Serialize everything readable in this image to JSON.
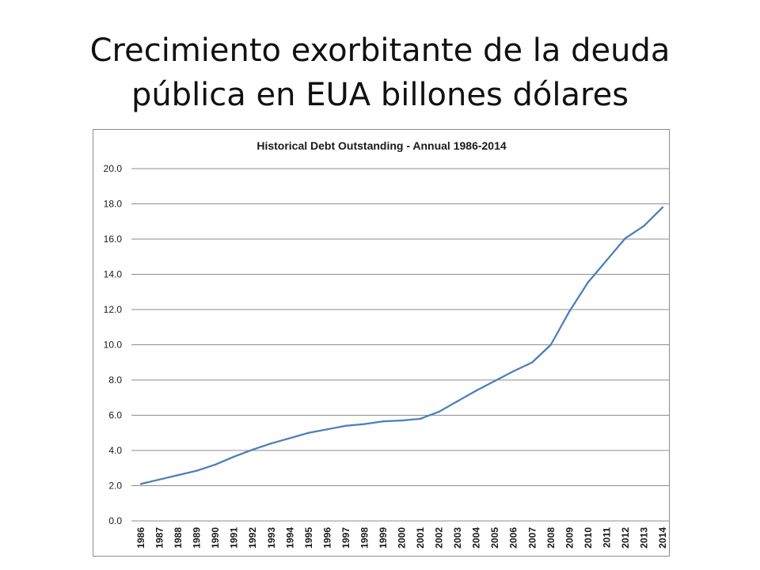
{
  "slide": {
    "title_line1": "Crecimiento exorbitante de la deuda",
    "title_line2": "pública en EUA billones dólares"
  },
  "colors": {
    "line": "#4a7ebb",
    "grid": "#8c8c8c",
    "frame": "#8c8c8c"
  },
  "chart_data": {
    "type": "line",
    "title": "Historical Debt Outstanding - Annual 1986-2014",
    "xlabel": "",
    "ylabel": "",
    "ylim": [
      0,
      20
    ],
    "yticks": [
      "0.0",
      "2.0",
      "4.0",
      "6.0",
      "8.0",
      "10.0",
      "12.0",
      "14.0",
      "16.0",
      "18.0",
      "20.0"
    ],
    "grid": true,
    "legend": "none",
    "categories": [
      "1986",
      "1987",
      "1988",
      "1989",
      "1990",
      "1991",
      "1992",
      "1993",
      "1994",
      "1995",
      "1996",
      "1997",
      "1998",
      "1999",
      "2000",
      "2001",
      "2002",
      "2003",
      "2004",
      "2005",
      "2006",
      "2007",
      "2008",
      "2009",
      "2010",
      "2011",
      "2012",
      "2013",
      "2014"
    ],
    "series": [
      {
        "values": [
          2.1,
          2.35,
          2.6,
          2.85,
          3.2,
          3.65,
          4.05,
          4.4,
          4.7,
          5.0,
          5.2,
          5.4,
          5.5,
          5.65,
          5.7,
          5.8,
          6.2,
          6.8,
          7.4,
          7.95,
          8.5,
          9.0,
          10.0,
          11.9,
          13.55,
          14.8,
          16.05,
          16.75,
          17.8
        ]
      }
    ]
  }
}
